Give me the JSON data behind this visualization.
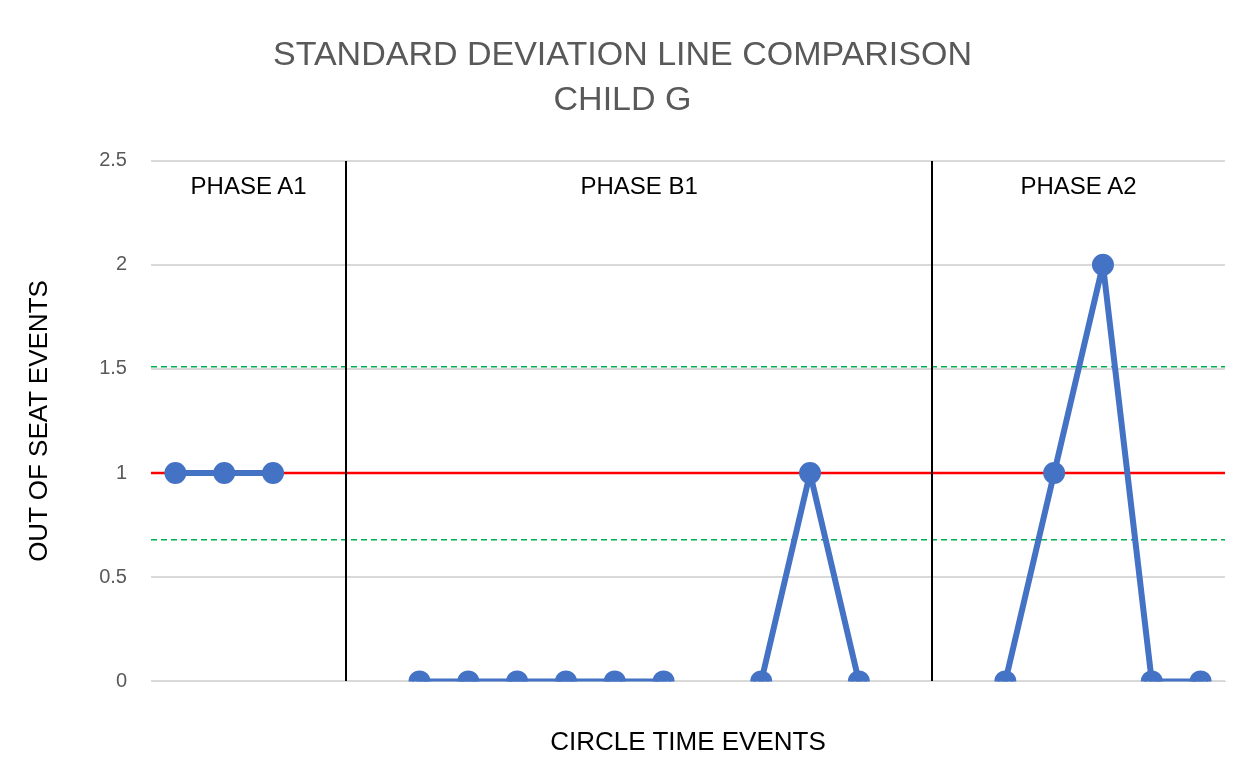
{
  "chart_data": {
    "type": "line",
    "title": "STANDARD DEVIATION LINE COMPARISON",
    "subtitle": "CHILD G",
    "xlabel": "CIRCLE TIME EVENTS",
    "ylabel": "OUT OF SEAT EVENTS",
    "categories": [
      null,
      null,
      null,
      null,
      null,
      null,
      null,
      null,
      null,
      null,
      null,
      null,
      null,
      null,
      null,
      null,
      null,
      null,
      null,
      null,
      null,
      null
    ],
    "series": [
      {
        "color": "#4472c4",
        "values": [
          1,
          1,
          1,
          null,
          null,
          0,
          0,
          0,
          0,
          0,
          0,
          null,
          0,
          1,
          0,
          null,
          null,
          0,
          1,
          2,
          0,
          0
        ]
      }
    ],
    "ylim": [
      0,
      2.5
    ],
    "yticks": [
      0,
      0.5,
      1,
      1.5,
      2,
      2.5
    ],
    "grid": "y",
    "marker": "circle",
    "line_style": "solid",
    "ref_lines": [
      {
        "axis": "y",
        "value": 1,
        "color": "#ff0000",
        "line_style": "solid"
      },
      {
        "axis": "y",
        "value": 1.51,
        "color": "#00b050",
        "line_style": "dashed"
      },
      {
        "axis": "y",
        "value": 0.68,
        "color": "#00b050",
        "line_style": "dashed"
      }
    ],
    "annotations": [
      "PHASE A1",
      "PHASE B1",
      "PHASE A2"
    ]
  }
}
